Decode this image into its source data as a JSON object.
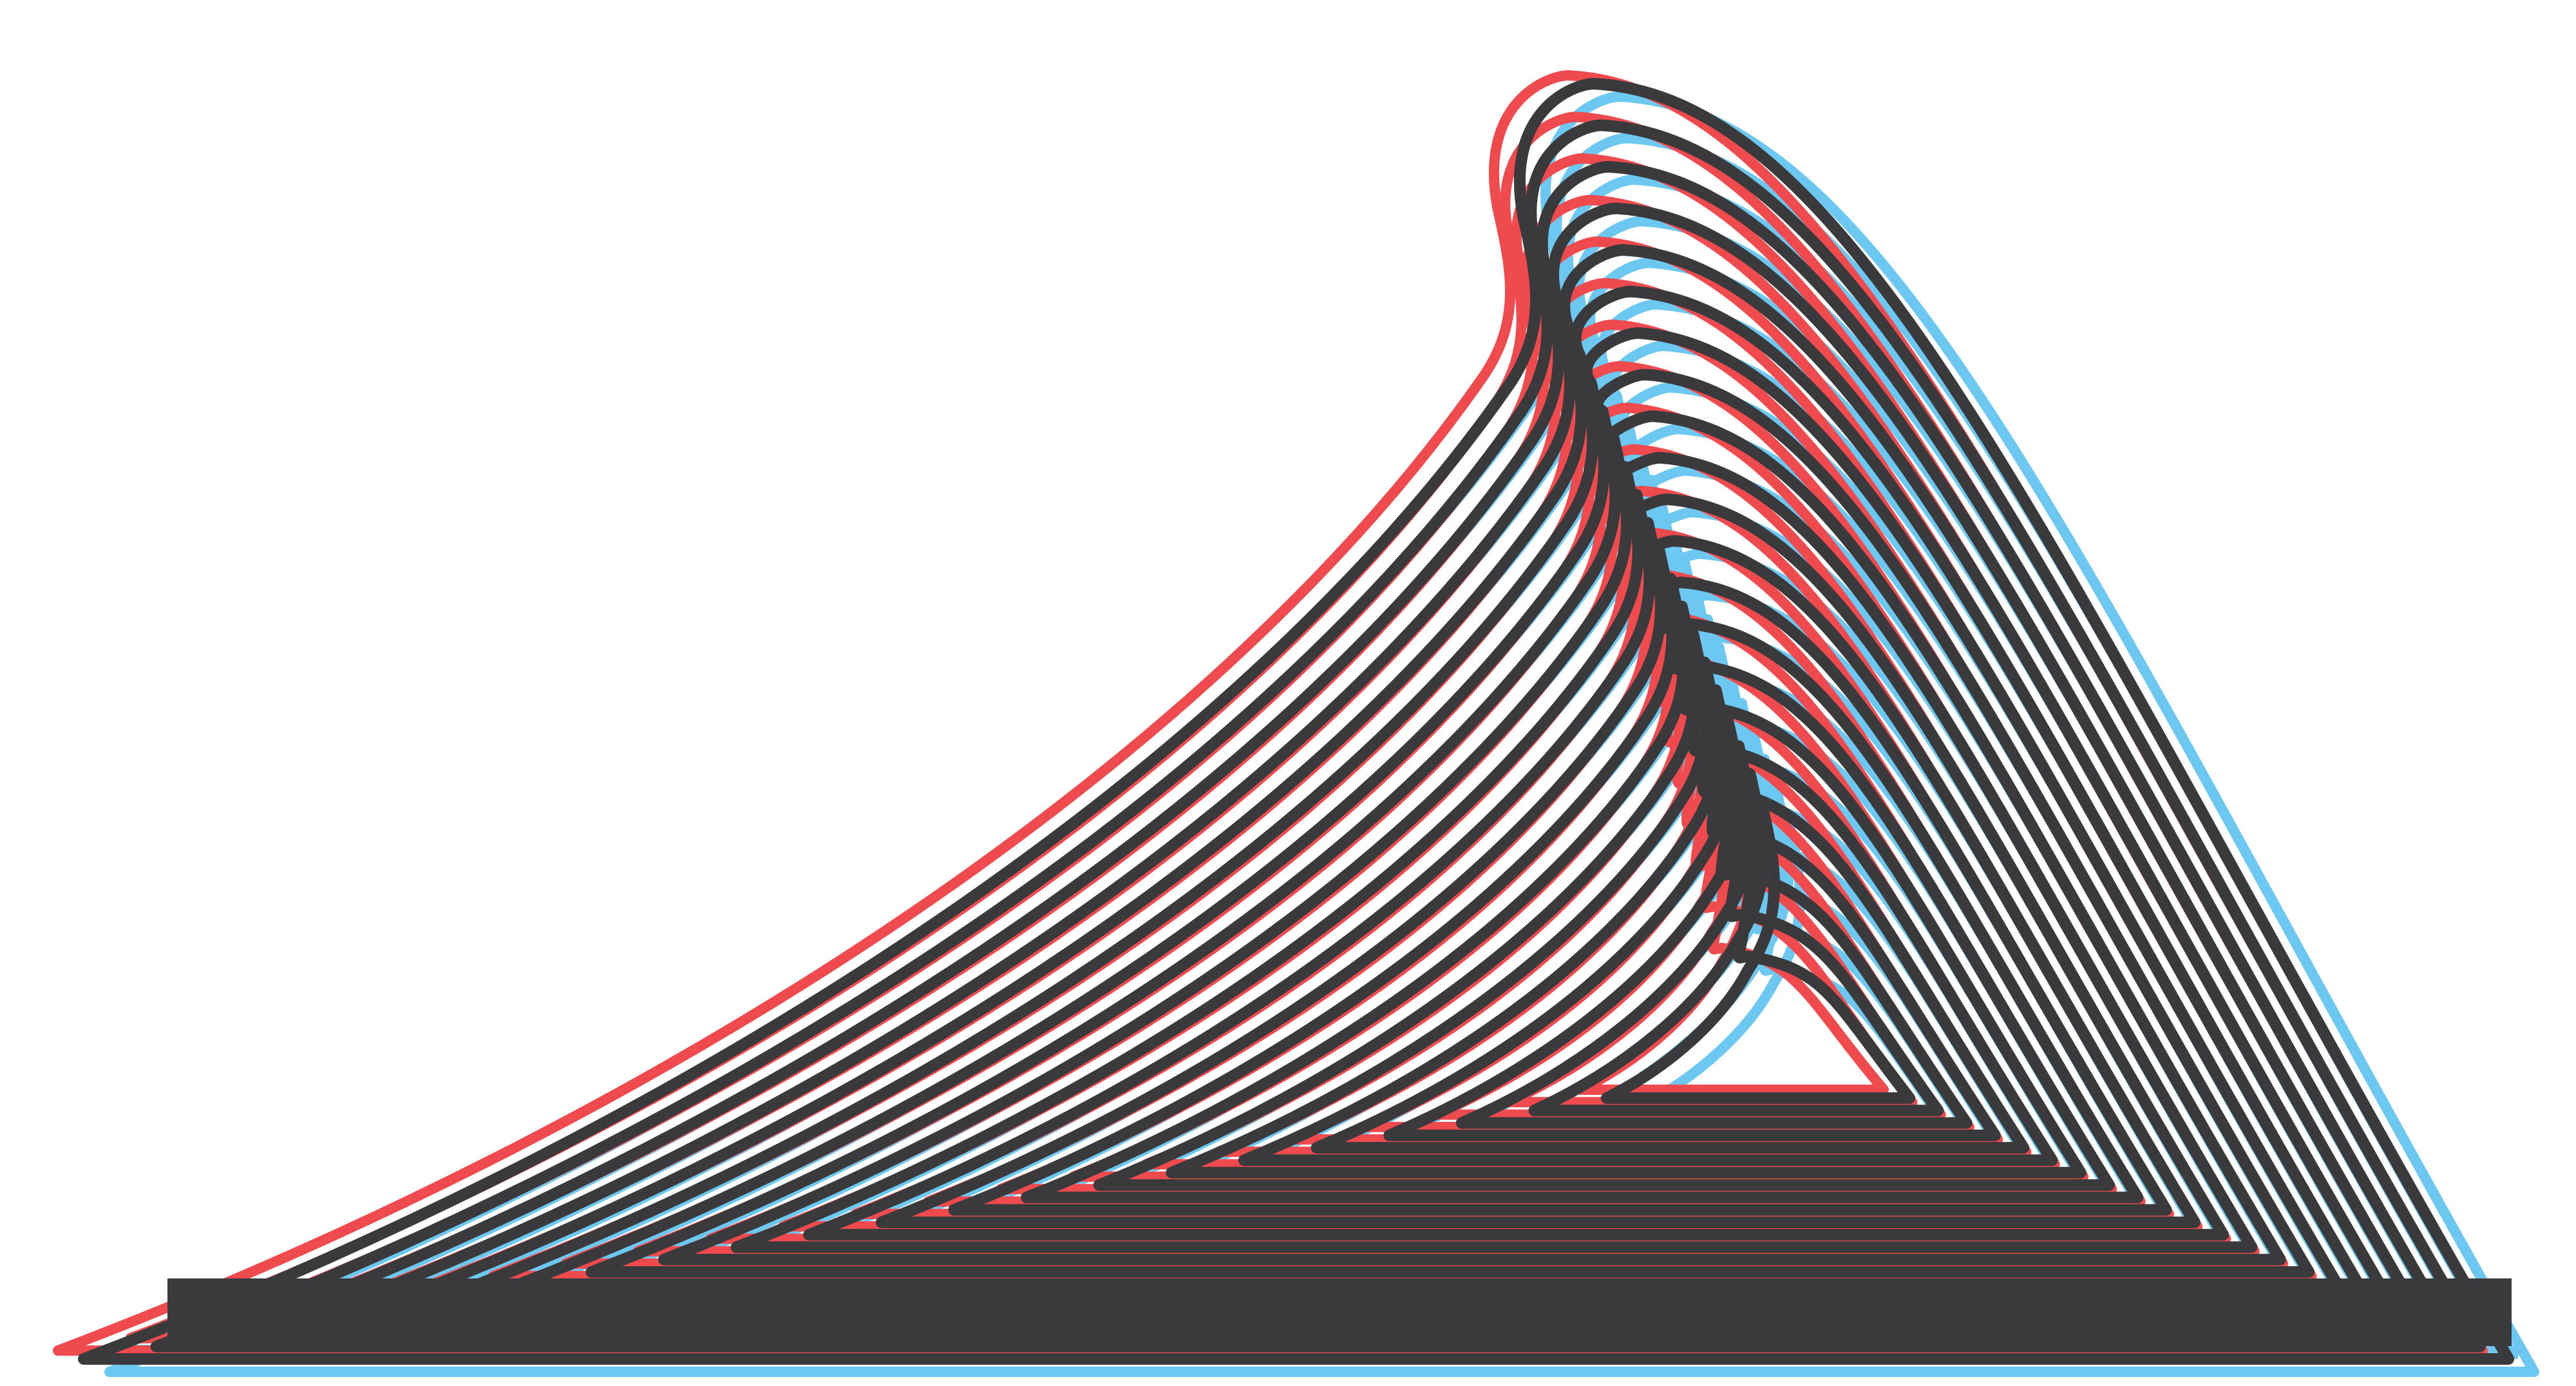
{
  "artwork": {
    "description_visible_text": "",
    "colors": {
      "background": "#ffffff",
      "red_layer": "#ef4b4f",
      "blue_layer": "#6cc8f0",
      "dark_layer": "#3a393c"
    }
  }
}
